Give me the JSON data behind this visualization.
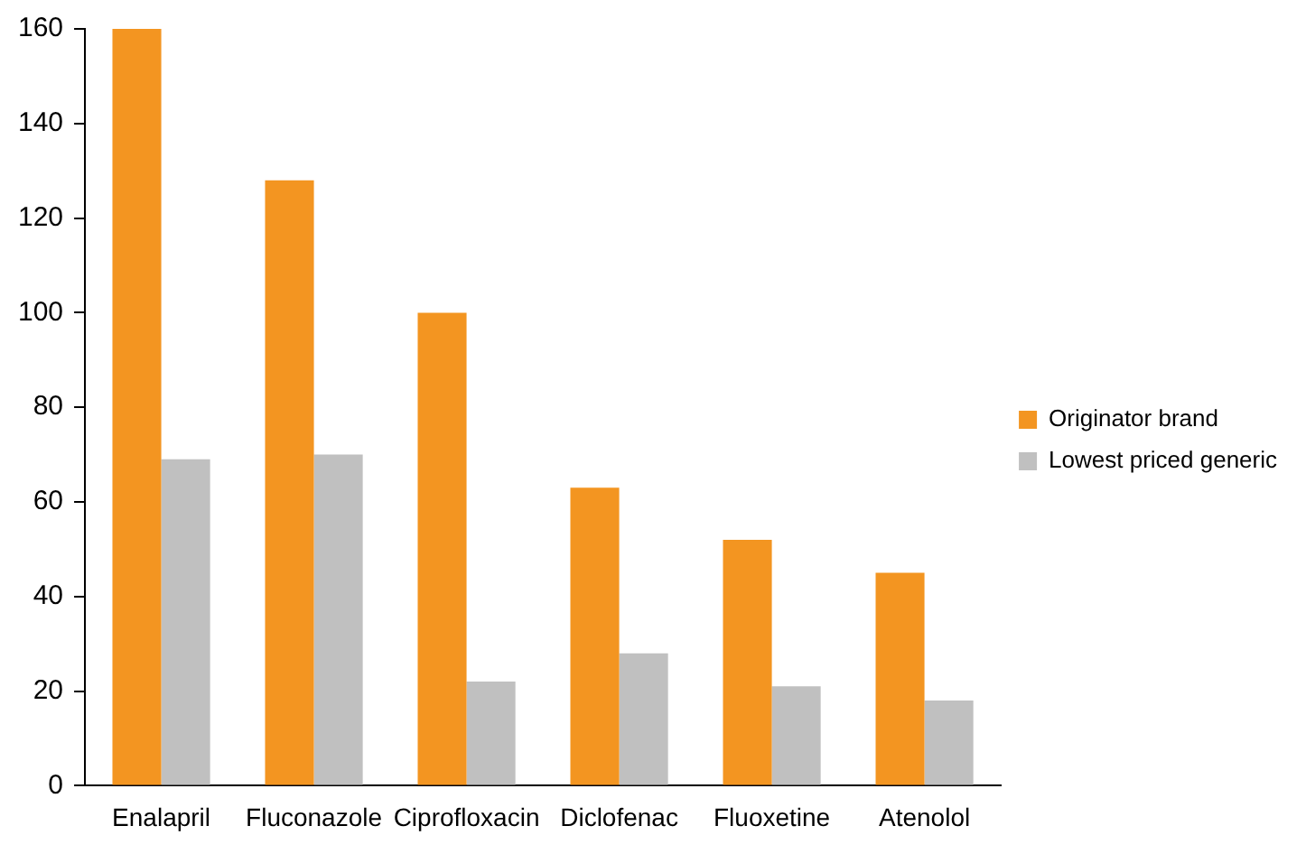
{
  "chart_data": {
    "type": "bar",
    "categories": [
      "Enalapril",
      "Fluconazole",
      "Ciprofloxacin",
      "Diclofenac",
      "Fluoxetine",
      "Atenolol"
    ],
    "series": [
      {
        "name": "Originator brand",
        "color": "#f39521",
        "values": [
          160,
          128,
          100,
          63,
          52,
          45
        ]
      },
      {
        "name": "Lowest priced generic",
        "color": "#c0c0c0",
        "values": [
          69,
          70,
          22,
          28,
          21,
          18
        ]
      }
    ],
    "ylim": [
      0,
      160
    ],
    "yticks": [
      0,
      20,
      40,
      60,
      80,
      100,
      120,
      140,
      160
    ],
    "grid": false,
    "legend": "right"
  }
}
